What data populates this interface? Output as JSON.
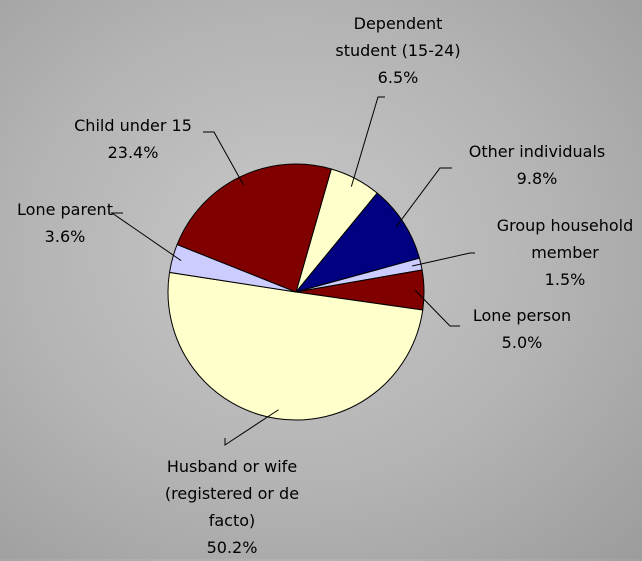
{
  "chart_data": {
    "type": "pie",
    "categories": [
      "Dependent student (15-24)",
      "Other individuals",
      "Group household member",
      "Lone person",
      "Husband or wife (registered or de facto)",
      "Lone parent",
      "Child under 15"
    ],
    "values": [
      6.5,
      9.8,
      1.5,
      5.0,
      50.2,
      3.6,
      23.4
    ],
    "value_labels": [
      "6.5%",
      "9.8%",
      "1.5%",
      "5.0%",
      "50.2%",
      "3.6%",
      "23.4%"
    ],
    "colors": [
      "#ffffcc",
      "#000080",
      "#ccccff",
      "#800000",
      "#ffffcc",
      "#ccccff",
      "#800000"
    ]
  }
}
